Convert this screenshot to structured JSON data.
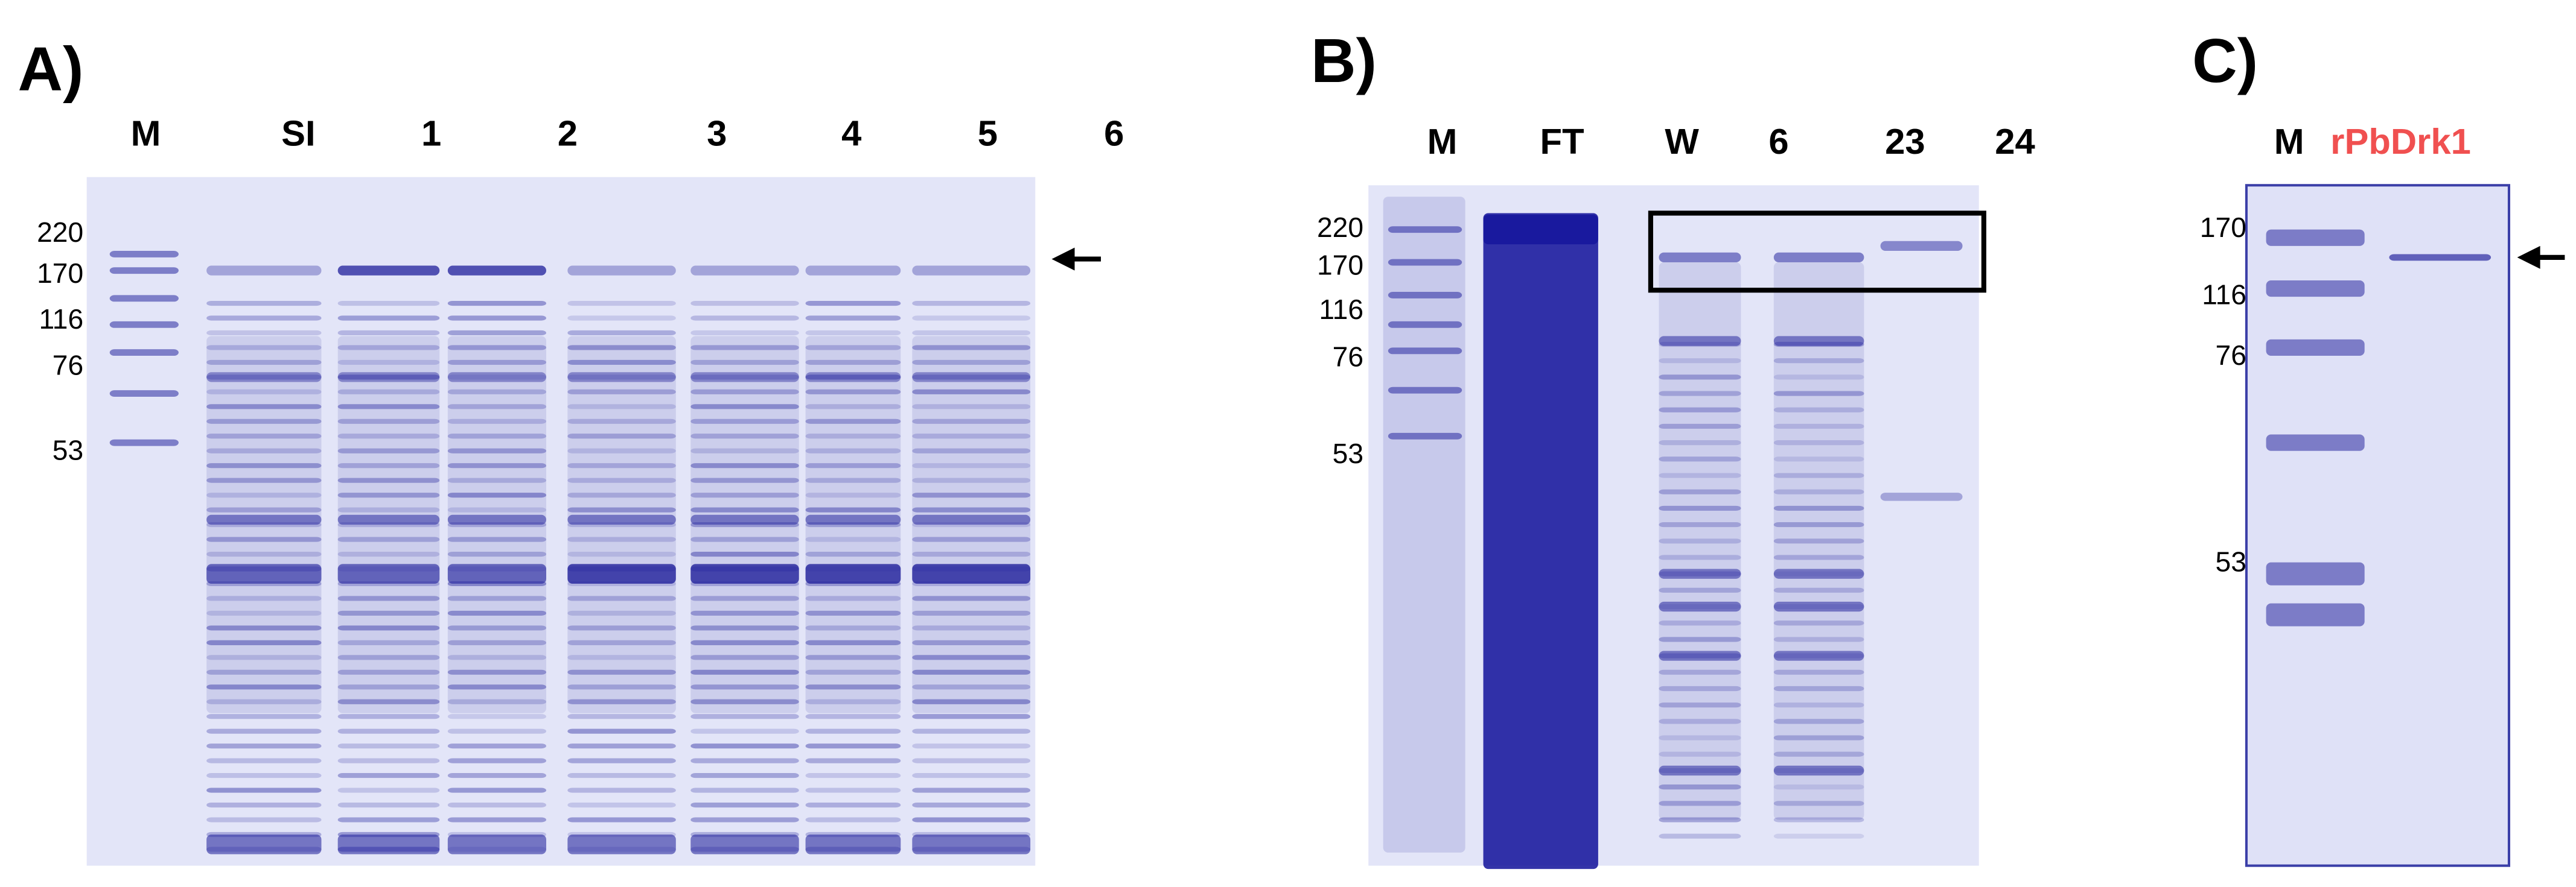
{
  "panels": [
    {
      "label": "A)",
      "lanes": [
        "M",
        "SI",
        "1",
        "2",
        "3",
        "4",
        "5",
        "6"
      ],
      "markers": [
        220,
        170,
        116,
        76,
        53
      ]
    },
    {
      "label": "B)",
      "lanes": [
        "M",
        "FT",
        "W",
        "6",
        "23",
        "24"
      ],
      "markers": [
        220,
        170,
        116,
        76,
        53
      ]
    },
    {
      "label": "C)",
      "lanes": [
        "M",
        "rPbDrk1"
      ],
      "markers": [
        170,
        116,
        76,
        53
      ]
    }
  ]
}
